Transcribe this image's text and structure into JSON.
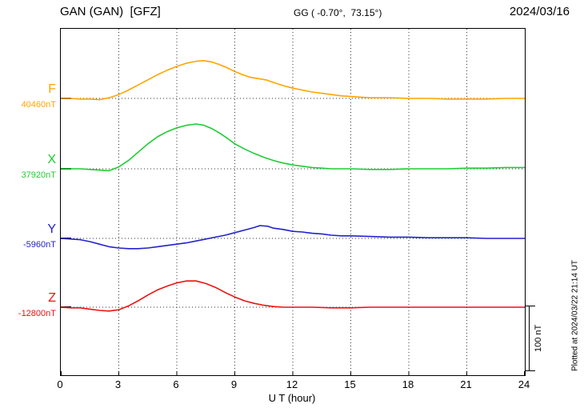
{
  "header": {
    "station_title": "GAN (GAN)  [GFZ]",
    "gg_coords": "GG ( -0.70°,  73.15°)",
    "date": "2024/03/16"
  },
  "axis": {
    "x_label": "U T (hour)",
    "x_ticks": [
      "0",
      "3",
      "6",
      "9",
      "12",
      "15",
      "18",
      "21",
      "24"
    ]
  },
  "scalebar": {
    "label": "100 nT"
  },
  "plot_note": "Plotted at 2024/03/22 21:14 UT",
  "chart_data": {
    "type": "line",
    "title": "GAN (GAN) [GFZ] geomagnetic components magnetogram, 2024/03/16",
    "xlabel": "U T (hour)",
    "x_range": [
      0,
      24
    ],
    "x_tick_step": 3,
    "y_unit": "nT",
    "scale_reference_nT": 100,
    "grid": "dotted vertical every 3 h, dotted horizontal at each component baseline",
    "series": [
      {
        "name": "F",
        "baseline_label": "40460nT",
        "color": "#FFA400",
        "points": [
          [
            0,
            0
          ],
          [
            0.5,
            0
          ],
          [
            1,
            -1
          ],
          [
            1.5,
            -1
          ],
          [
            2,
            -2
          ],
          [
            2.5,
            1
          ],
          [
            3,
            6
          ],
          [
            3.5,
            13
          ],
          [
            4,
            21
          ],
          [
            4.5,
            29
          ],
          [
            5,
            37
          ],
          [
            5.5,
            44
          ],
          [
            6,
            50
          ],
          [
            6.5,
            55
          ],
          [
            7,
            58
          ],
          [
            7.4,
            59
          ],
          [
            7.8,
            57
          ],
          [
            8.2,
            53
          ],
          [
            8.6,
            48
          ],
          [
            9,
            42
          ],
          [
            9.4,
            37
          ],
          [
            9.8,
            33
          ],
          [
            10.2,
            31
          ],
          [
            10.6,
            29
          ],
          [
            11,
            25
          ],
          [
            11.5,
            20
          ],
          [
            12,
            16
          ],
          [
            12.5,
            13
          ],
          [
            13,
            10
          ],
          [
            13.5,
            8
          ],
          [
            14,
            6
          ],
          [
            14.5,
            4
          ],
          [
            15,
            3
          ],
          [
            15.5,
            2
          ],
          [
            16,
            1
          ],
          [
            17,
            1
          ],
          [
            18,
            0
          ],
          [
            19,
            0
          ],
          [
            20,
            -1
          ],
          [
            21,
            -1
          ],
          [
            22,
            -1
          ],
          [
            23,
            0
          ],
          [
            24,
            0
          ]
        ]
      },
      {
        "name": "X",
        "baseline_label": "37920nT",
        "color": "#1FCC33",
        "points": [
          [
            0,
            0
          ],
          [
            0.5,
            0
          ],
          [
            1,
            0
          ],
          [
            1.5,
            -1
          ],
          [
            2,
            -2
          ],
          [
            2.5,
            -3
          ],
          [
            3,
            3
          ],
          [
            3.5,
            13
          ],
          [
            4,
            26
          ],
          [
            4.5,
            39
          ],
          [
            5,
            50
          ],
          [
            5.5,
            58
          ],
          [
            6,
            64
          ],
          [
            6.5,
            68
          ],
          [
            7,
            70
          ],
          [
            7.4,
            68
          ],
          [
            7.8,
            63
          ],
          [
            8.2,
            56
          ],
          [
            8.6,
            48
          ],
          [
            9,
            39
          ],
          [
            9.5,
            31
          ],
          [
            10,
            24
          ],
          [
            10.5,
            18
          ],
          [
            11,
            13
          ],
          [
            11.5,
            9
          ],
          [
            12,
            6
          ],
          [
            12.5,
            4
          ],
          [
            13,
            2
          ],
          [
            13.5,
            1
          ],
          [
            14,
            0
          ],
          [
            15,
            0
          ],
          [
            16,
            -1
          ],
          [
            17,
            -1
          ],
          [
            18,
            0
          ],
          [
            19,
            0
          ],
          [
            20,
            0
          ],
          [
            21,
            1
          ],
          [
            22,
            1
          ],
          [
            23,
            2
          ],
          [
            24,
            2
          ]
        ]
      },
      {
        "name": "Y",
        "baseline_label": "-5960nT",
        "color": "#2222CC",
        "points": [
          [
            0,
            0
          ],
          [
            0.5,
            -1
          ],
          [
            1,
            -2
          ],
          [
            1.5,
            -5
          ],
          [
            2,
            -9
          ],
          [
            2.5,
            -13
          ],
          [
            3,
            -15
          ],
          [
            3.5,
            -16
          ],
          [
            4,
            -16
          ],
          [
            4.5,
            -15
          ],
          [
            5,
            -13
          ],
          [
            5.5,
            -11
          ],
          [
            6,
            -9
          ],
          [
            6.5,
            -7
          ],
          [
            7,
            -4
          ],
          [
            7.5,
            -1
          ],
          [
            8,
            2
          ],
          [
            8.5,
            5
          ],
          [
            9,
            9
          ],
          [
            9.5,
            13
          ],
          [
            10,
            17
          ],
          [
            10.3,
            20
          ],
          [
            10.7,
            19
          ],
          [
            11,
            16
          ],
          [
            11.5,
            14
          ],
          [
            12,
            11
          ],
          [
            12.5,
            10
          ],
          [
            13,
            8
          ],
          [
            13.5,
            7
          ],
          [
            14,
            5
          ],
          [
            14.5,
            4
          ],
          [
            15,
            4
          ],
          [
            16,
            3
          ],
          [
            17,
            2
          ],
          [
            18,
            2
          ],
          [
            19,
            1
          ],
          [
            20,
            1
          ],
          [
            21,
            1
          ],
          [
            22,
            0
          ],
          [
            23,
            0
          ],
          [
            24,
            0
          ]
        ]
      },
      {
        "name": "Z",
        "baseline_label": "-12800nT",
        "color": "#EE1111",
        "points": [
          [
            0,
            0
          ],
          [
            0.5,
            -1
          ],
          [
            1,
            -1
          ],
          [
            1.5,
            -3
          ],
          [
            2,
            -5
          ],
          [
            2.5,
            -6
          ],
          [
            3,
            -4
          ],
          [
            3.5,
            2
          ],
          [
            4,
            10
          ],
          [
            4.5,
            19
          ],
          [
            5,
            27
          ],
          [
            5.5,
            33
          ],
          [
            6,
            38
          ],
          [
            6.5,
            41
          ],
          [
            7,
            41
          ],
          [
            7.5,
            37
          ],
          [
            8,
            31
          ],
          [
            8.5,
            23
          ],
          [
            9,
            16
          ],
          [
            9.5,
            10
          ],
          [
            10,
            6
          ],
          [
            10.5,
            3
          ],
          [
            11,
            1
          ],
          [
            11.5,
            0
          ],
          [
            12,
            0
          ],
          [
            13,
            0
          ],
          [
            14,
            -1
          ],
          [
            15,
            -1
          ],
          [
            16,
            0
          ],
          [
            17,
            0
          ],
          [
            18,
            0
          ],
          [
            19,
            0
          ],
          [
            20,
            0
          ],
          [
            21,
            0
          ],
          [
            22,
            0
          ],
          [
            23,
            0
          ],
          [
            24,
            0
          ]
        ]
      }
    ]
  }
}
